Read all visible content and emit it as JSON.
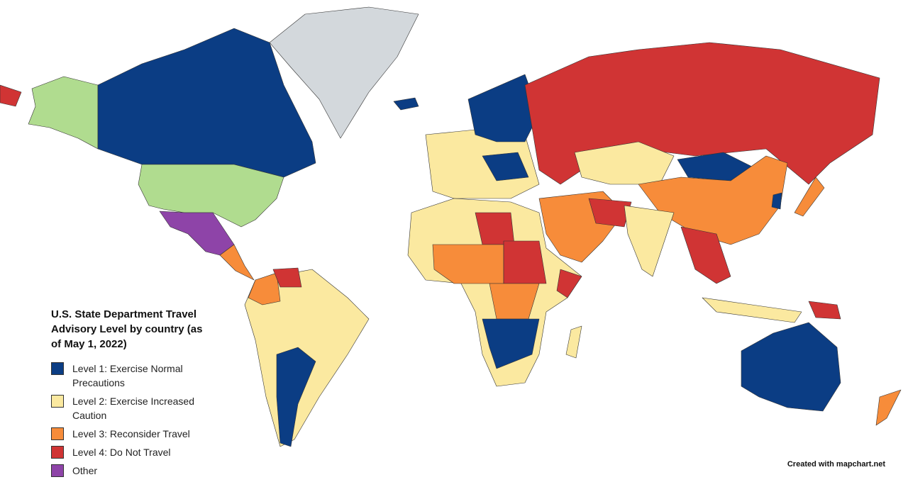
{
  "title": "U.S. State Department Travel Advisory Level by country (as of May 1, 2022)",
  "legend": [
    {
      "label": "Level 1: Exercise Normal Precautions",
      "color": "#0b3d84"
    },
    {
      "label": "Level 2: Exercise Increased Caution",
      "color": "#fbe9a0"
    },
    {
      "label": "Level 3: Reconsider Travel",
      "color": "#f78c3a"
    },
    {
      "label": "Level 4: Do Not Travel",
      "color": "#d03434"
    },
    {
      "label": "Other",
      "color": "#8e44a8"
    }
  ],
  "credit": "Created with mapchart.net"
}
